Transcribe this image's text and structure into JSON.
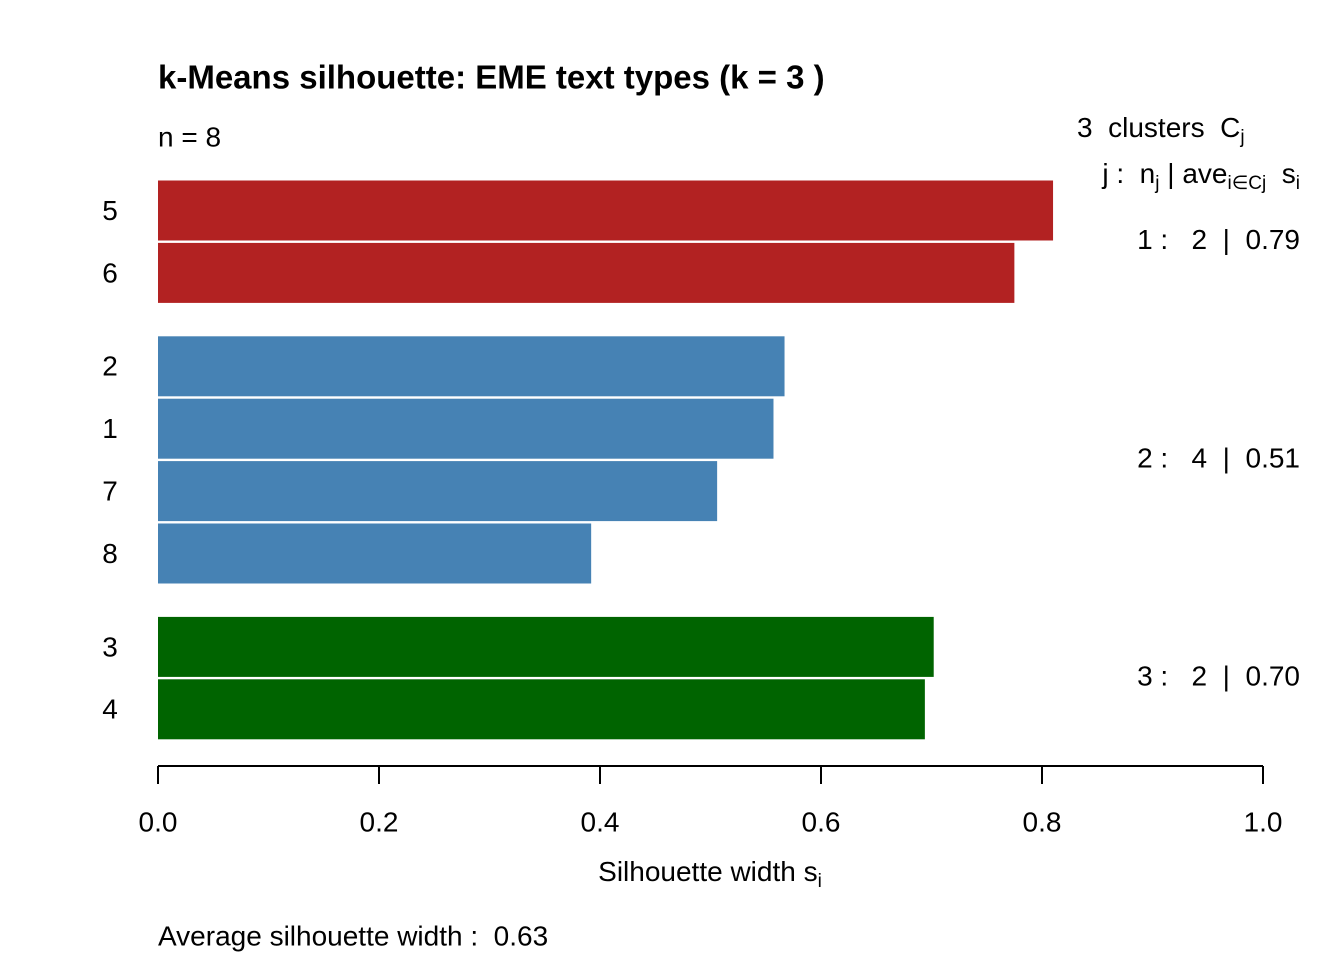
{
  "chart_data": {
    "type": "silhouette",
    "title": "k-Means silhouette: EME text types (k = 3 )",
    "subtitle": "n = 8",
    "legend_lines": [
      [
        {
          "text": "3  clusters  C"
        },
        {
          "sub": "j"
        }
      ],
      [
        {
          "text": "j :  n"
        },
        {
          "sub": "j"
        },
        {
          "text": " | ave"
        },
        {
          "sub": "i∈Cj"
        },
        {
          "text": "  s"
        },
        {
          "sub": "i"
        }
      ]
    ],
    "clusters": [
      {
        "color": "#b22222",
        "categories": [
          "5",
          "6"
        ],
        "values": [
          0.81,
          0.775
        ],
        "summary": "1 :   2  |  0.79"
      },
      {
        "color": "#4682b4",
        "categories": [
          "2",
          "1",
          "7",
          "8"
        ],
        "values": [
          0.567,
          0.557,
          0.506,
          0.392
        ],
        "summary": "2 :   4  |  0.51"
      },
      {
        "color": "#006400",
        "categories": [
          "3",
          "4"
        ],
        "values": [
          0.702,
          0.694
        ],
        "summary": "3 :   2  |  0.70"
      }
    ],
    "xlim": [
      0,
      1
    ],
    "xticks": [
      {
        "value": 0,
        "label": "0.0"
      },
      0.2,
      0.4,
      0.6,
      0.8,
      {
        "value": 1,
        "label": "1.0"
      }
    ],
    "xlabel": [
      {
        "text": "Silhouette width s"
      },
      {
        "sub": "i"
      }
    ],
    "footer": "Average silhouette width :  0.63"
  }
}
